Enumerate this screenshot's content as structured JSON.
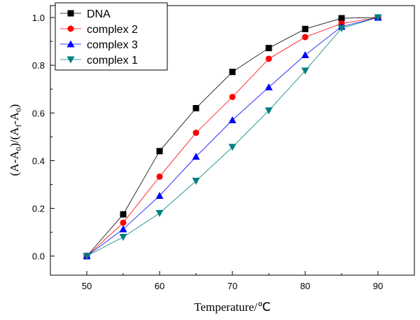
{
  "chart_data": {
    "type": "line",
    "x": [
      50,
      55,
      60,
      65,
      70,
      75,
      80,
      85,
      90
    ],
    "xlabel": "Temperature/℃",
    "ylabel": "(A-A0)/(Af-A0)",
    "xlim": [
      45,
      95
    ],
    "ylim": [
      -0.08,
      1.05
    ],
    "xticks": [
      50,
      60,
      70,
      80,
      90
    ],
    "yticks": [
      0.0,
      0.2,
      0.4,
      0.6,
      0.8,
      1.0
    ],
    "ytick_labels": [
      "0.0",
      "0.2",
      "0.4",
      "0.6",
      "0.8",
      "1.0"
    ],
    "grid": false,
    "legend_position": "top-left",
    "series": [
      {
        "name": "DNA",
        "color": "#000000",
        "marker": "square",
        "values": [
          0.0,
          0.175,
          0.44,
          0.62,
          0.772,
          0.872,
          0.952,
          0.997,
          1.0
        ]
      },
      {
        "name": "complex 2",
        "color": "#ff0000",
        "marker": "circle",
        "values": [
          0.0,
          0.14,
          0.333,
          0.517,
          0.667,
          0.827,
          0.918,
          0.975,
          1.0
        ]
      },
      {
        "name": "complex 3",
        "color": "#0000ff",
        "marker": "triangle-up",
        "values": [
          0.0,
          0.113,
          0.253,
          0.417,
          0.57,
          0.708,
          0.843,
          0.962,
          1.0
        ]
      },
      {
        "name": "complex 1",
        "color": "#008080",
        "marker": "triangle-down",
        "values": [
          0.0,
          0.08,
          0.18,
          0.315,
          0.457,
          0.61,
          0.777,
          0.955,
          1.0
        ]
      }
    ]
  }
}
